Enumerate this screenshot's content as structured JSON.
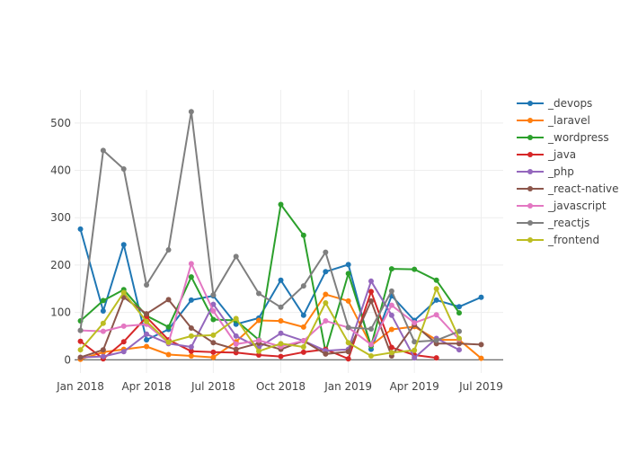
{
  "chart_data": {
    "type": "line",
    "title": "",
    "xlabel": "",
    "ylabel": "",
    "x_range": [
      "2017-12-24",
      "2019-07-31"
    ],
    "ylim": [
      -28,
      570
    ],
    "x_ticks": [
      {
        "date": "2018-01-01",
        "label": "Jan 2018"
      },
      {
        "date": "2018-04-01",
        "label": "Apr 2018"
      },
      {
        "date": "2018-07-01",
        "label": "Jul 2018"
      },
      {
        "date": "2018-10-01",
        "label": "Oct 2018"
      },
      {
        "date": "2019-01-01",
        "label": "Jan 2019"
      },
      {
        "date": "2019-04-01",
        "label": "Apr 2019"
      },
      {
        "date": "2019-07-01",
        "label": "Jul 2019"
      }
    ],
    "y_ticks": [
      0,
      100,
      200,
      300,
      400,
      500
    ],
    "grid": true,
    "legend_position": "right",
    "x": [
      "2018-01-01",
      "2018-02-01",
      "2018-03-01",
      "2018-04-01",
      "2018-05-01",
      "2018-06-01",
      "2018-07-01",
      "2018-08-01",
      "2018-09-01",
      "2018-10-01",
      "2018-11-01",
      "2018-12-01",
      "2019-01-01",
      "2019-02-01",
      "2019-03-01",
      "2019-04-01",
      "2019-05-01",
      "2019-06-01",
      "2019-07-01"
    ],
    "series": [
      {
        "name": "_devops",
        "color": "#1f77b4",
        "values": [
          276,
          103,
          243,
          42,
          64,
          126,
          135,
          75,
          88,
          168,
          94,
          186,
          201,
          22,
          135,
          83,
          126,
          112,
          132
        ]
      },
      {
        "name": "_laravel",
        "color": "#ff7f0e",
        "values": [
          1,
          16,
          22,
          28,
          11,
          8,
          5,
          38,
          83,
          82,
          69,
          138,
          124,
          30,
          64,
          70,
          42,
          42,
          3
        ]
      },
      {
        "name": "_wordpress",
        "color": "#2ca02c",
        "values": [
          82,
          125,
          148,
          93,
          69,
          175,
          85,
          83,
          42,
          328,
          263,
          17,
          182,
          29,
          192,
          191,
          168,
          99,
          null
        ]
      },
      {
        "name": "_java",
        "color": "#d62728",
        "values": [
          39,
          2,
          38,
          90,
          42,
          18,
          16,
          15,
          10,
          7,
          16,
          22,
          2,
          144,
          26,
          10,
          4,
          null,
          null
        ]
      },
      {
        "name": "_php",
        "color": "#9467bd",
        "values": [
          5,
          7,
          17,
          54,
          34,
          27,
          117,
          50,
          26,
          56,
          40,
          19,
          22,
          166,
          94,
          4,
          45,
          21,
          null
        ]
      },
      {
        "name": "_react-native",
        "color": "#8c564b",
        "values": [
          5,
          21,
          132,
          97,
          127,
          67,
          36,
          22,
          35,
          22,
          40,
          12,
          17,
          124,
          8,
          74,
          34,
          34,
          32
        ]
      },
      {
        "name": "_javascript",
        "color": "#e377c2",
        "values": [
          62,
          60,
          71,
          75,
          36,
          203,
          103,
          33,
          41,
          28,
          40,
          82,
          68,
          32,
          115,
          78,
          95,
          43,
          null
        ]
      },
      {
        "name": "_reactjs",
        "color": "#7f7f7f",
        "values": [
          62,
          442,
          403,
          158,
          232,
          524,
          137,
          218,
          140,
          111,
          156,
          227,
          68,
          65,
          145,
          38,
          41,
          60,
          null
        ]
      },
      {
        "name": "_frontend",
        "color": "#bcbd22",
        "values": [
          21,
          77,
          142,
          81,
          37,
          50,
          52,
          87,
          18,
          34,
          27,
          120,
          36,
          8,
          15,
          20,
          150,
          45,
          null
        ]
      }
    ]
  }
}
